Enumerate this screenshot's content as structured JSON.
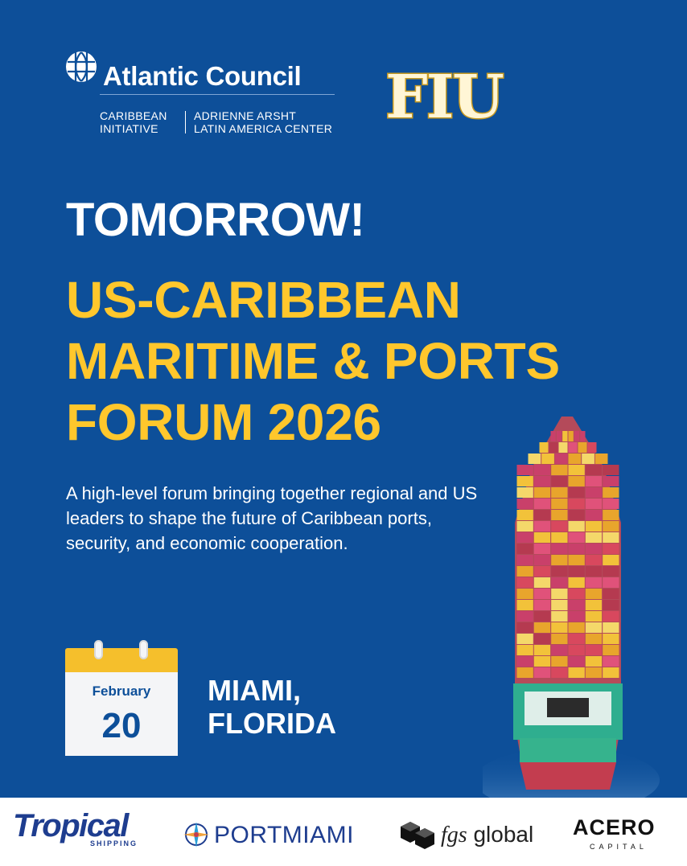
{
  "header": {
    "org_name": "Atlantic Council",
    "sub_left_line1": "CARIBBEAN",
    "sub_left_line2": "INITIATIVE",
    "sub_right_line1": "ADRIENNE ARSHT",
    "sub_right_line2": "LATIN AMERICA CENTER",
    "partner_logo": "FIU"
  },
  "headline": "TOMORROW!",
  "title_lines": [
    "US-CARIBBEAN",
    "MARITIME & PORTS",
    "FORUM 2026"
  ],
  "description": "A high-level forum bringing together regional and US leaders to shape the future of Caribbean ports, security, and economic cooperation.",
  "date": {
    "month": "February",
    "day": "20"
  },
  "location_lines": [
    "MIAMI,",
    "FLORIDA"
  ],
  "sponsors": {
    "tropical": "Tropical",
    "tropical_sub": "SHIPPING",
    "portmiami": "PORTMIAMI",
    "fgs": "global",
    "fgs_prefix": "fgs",
    "acero": "ACERO",
    "acero_sub": "CAPITAL"
  },
  "colors": {
    "background": "#0d4f99",
    "accent": "#ffc72c",
    "text": "#ffffff",
    "sponsor_bar": "#ffffff"
  },
  "icons": [
    "atlantic-council-globe-icon",
    "calendar-icon",
    "container-ship-image",
    "portmiami-compass-icon",
    "fgs-cube-icon"
  ]
}
